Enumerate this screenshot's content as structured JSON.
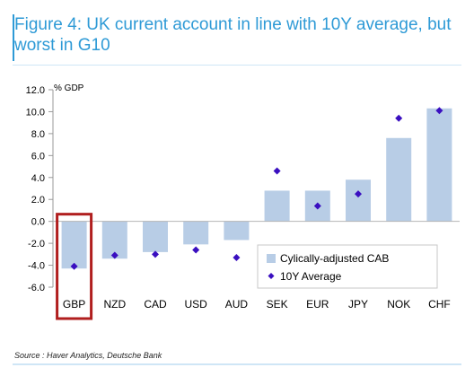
{
  "figure": {
    "title": "Figure 4: UK current account in line with 10Y average, but worst in G10",
    "source": "Source : Haver Analytics, Deutsche Bank"
  },
  "colors": {
    "title": "#2e9ad6",
    "bar": "#b8cde6",
    "marker": "#3a0fc0",
    "highlight": "#b01e1e"
  },
  "chart_data": {
    "type": "bar",
    "ylabel": "% GDP",
    "ylim": [
      -6,
      12
    ],
    "yticks": [
      "12.0",
      "10.0",
      "8.0",
      "6.0",
      "4.0",
      "2.0",
      "0.0",
      "-2.0",
      "-4.0",
      "-6.0"
    ],
    "ytick_values": [
      12,
      10,
      8,
      6,
      4,
      2,
      0,
      -2,
      -4,
      -6
    ],
    "categories": [
      "GBP",
      "NZD",
      "CAD",
      "USD",
      "AUD",
      "SEK",
      "EUR",
      "JPY",
      "NOK",
      "CHF"
    ],
    "series": [
      {
        "name": "Cylically-adjusted CAB",
        "kind": "bar",
        "values": [
          -4.3,
          -3.4,
          -2.8,
          -2.1,
          -1.7,
          2.8,
          2.8,
          3.8,
          7.6,
          10.3
        ]
      },
      {
        "name": "10Y Average",
        "kind": "marker",
        "values": [
          -4.1,
          -3.1,
          -3.0,
          -2.6,
          -3.3,
          4.6,
          1.4,
          2.5,
          9.4,
          10.1
        ]
      }
    ],
    "highlighted_category": "GBP",
    "grid": false,
    "legend_position": "bottom-right"
  }
}
